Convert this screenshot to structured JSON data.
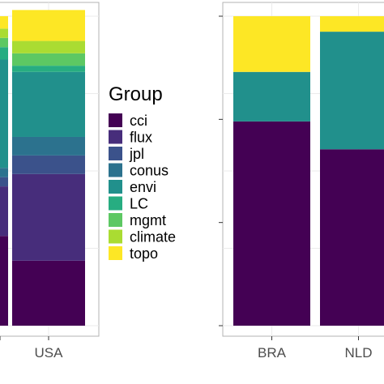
{
  "chart_data": [
    {
      "type": "bar",
      "stacked": true,
      "categories": [
        "",
        "USA"
      ],
      "ylim": [
        0,
        1
      ],
      "grid": true,
      "segments": [
        [
          {
            "group": "cci",
            "value": 0.29
          },
          {
            "group": "flux",
            "value": 0.16
          },
          {
            "group": "jpl",
            "value": 0.03
          },
          {
            "group": "conus",
            "value": 0.03
          },
          {
            "group": "envi",
            "value": 0.35
          },
          {
            "group": "LC",
            "value": 0.04
          },
          {
            "group": "mgmt",
            "value": 0.03
          },
          {
            "group": "climate",
            "value": 0.03
          },
          {
            "group": "topo",
            "value": 0.04
          }
        ],
        [
          {
            "group": "cci",
            "value": 0.21
          },
          {
            "group": "flux",
            "value": 0.28
          },
          {
            "group": "jpl",
            "value": 0.06
          },
          {
            "group": "conus",
            "value": 0.06
          },
          {
            "group": "envi",
            "value": 0.21
          },
          {
            "group": "LC",
            "value": 0.02
          },
          {
            "group": "mgmt",
            "value": 0.04
          },
          {
            "group": "climate",
            "value": 0.04
          },
          {
            "group": "topo",
            "value": 0.1
          }
        ]
      ]
    },
    {
      "type": "bar",
      "stacked": true,
      "categories": [
        "BRA",
        "NLD"
      ],
      "ylim": [
        0,
        1
      ],
      "grid": true,
      "segments": [
        [
          {
            "group": "cci",
            "value": 0.66
          },
          {
            "group": "envi",
            "value": 0.16
          },
          {
            "group": "topo",
            "value": 0.18
          }
        ],
        [
          {
            "group": "cci",
            "value": 0.57
          },
          {
            "group": "envi",
            "value": 0.38
          },
          {
            "group": "topo",
            "value": 0.05
          }
        ]
      ]
    }
  ],
  "legend": {
    "title": "Group",
    "placement": "center",
    "items": [
      {
        "label": "cci",
        "color": "#440154"
      },
      {
        "label": "flux",
        "color": "#472D7B"
      },
      {
        "label": "jpl",
        "color": "#3B528B"
      },
      {
        "label": "conus",
        "color": "#2C728E"
      },
      {
        "label": "envi",
        "color": "#21908C"
      },
      {
        "label": "LC",
        "color": "#27AD81"
      },
      {
        "label": "mgmt",
        "color": "#5DC863"
      },
      {
        "label": "climate",
        "color": "#AADC32"
      },
      {
        "label": "topo",
        "color": "#FDE725"
      }
    ]
  }
}
